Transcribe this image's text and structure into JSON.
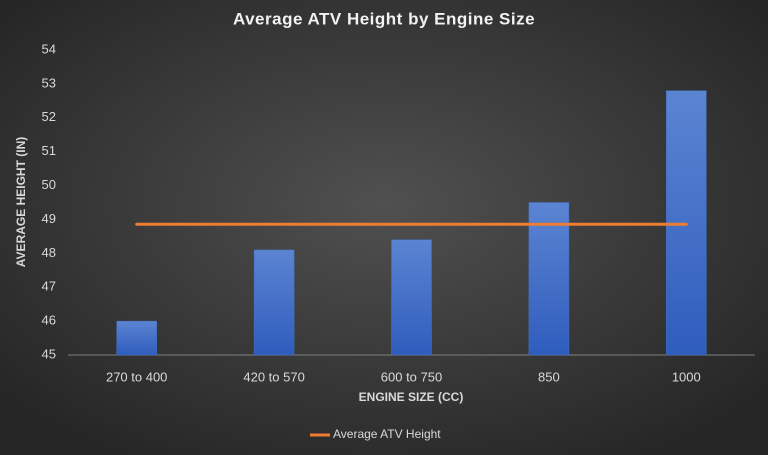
{
  "chart_data": {
    "type": "bar",
    "title": "Average ATV Height by Engine Size",
    "x_label": "ENGINE SIZE (CC)",
    "y_label": "AVERAGE HEIGHT (IN)",
    "categories": [
      "270 to 400",
      "420 to 570",
      "600 to 750",
      "850",
      "1000"
    ],
    "series": [
      {
        "type": "bar",
        "color": "#4472c4",
        "values": [
          46.0,
          48.1,
          48.4,
          49.5,
          52.8
        ]
      },
      {
        "type": "line",
        "name": "Average ATV Height",
        "color": "#ed7d31",
        "values": [
          48.86,
          48.86,
          48.86,
          48.86,
          48.86
        ]
      }
    ],
    "ylim": [
      45,
      54
    ],
    "yticks": [
      45,
      46,
      47,
      48,
      49,
      50,
      51,
      52,
      53,
      54
    ],
    "grid": false,
    "legend": "bottom"
  }
}
